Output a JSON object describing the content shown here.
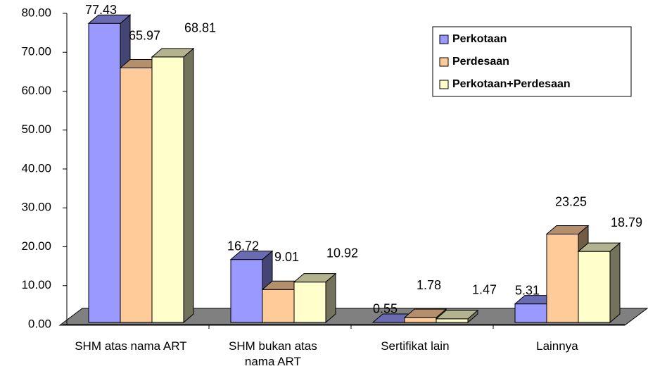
{
  "chart_data": {
    "type": "bar3d",
    "categories": [
      "SHM atas nama ART",
      "SHM bukan atas nama ART",
      "Sertifikat lain",
      "Lainnya"
    ],
    "series": [
      {
        "name": "Perkotaan",
        "color": "#9999ff",
        "values": [
          77.43,
          16.72,
          0.55,
          5.31
        ]
      },
      {
        "name": "Perdesaan",
        "color": "#ffcc99",
        "values": [
          65.97,
          9.01,
          1.78,
          23.25
        ]
      },
      {
        "name": "Perkotaan+Perdesaan",
        "color": "#ffffcc",
        "values": [
          68.81,
          10.92,
          1.47,
          18.79
        ]
      }
    ],
    "ylim": [
      0,
      80
    ],
    "yticks": [
      {
        "value": 0,
        "label": "0.00"
      },
      {
        "value": 10,
        "label": "10.00"
      },
      {
        "value": 20,
        "label": "20.00"
      },
      {
        "value": 30,
        "label": "30.00"
      },
      {
        "value": 40,
        "label": "40.00"
      },
      {
        "value": 50,
        "label": "50.00"
      },
      {
        "value": 60,
        "label": "60.00"
      },
      {
        "value": 70,
        "label": "70.00"
      },
      {
        "value": 80,
        "label": "80.00"
      }
    ],
    "floor_color": "#808080"
  }
}
